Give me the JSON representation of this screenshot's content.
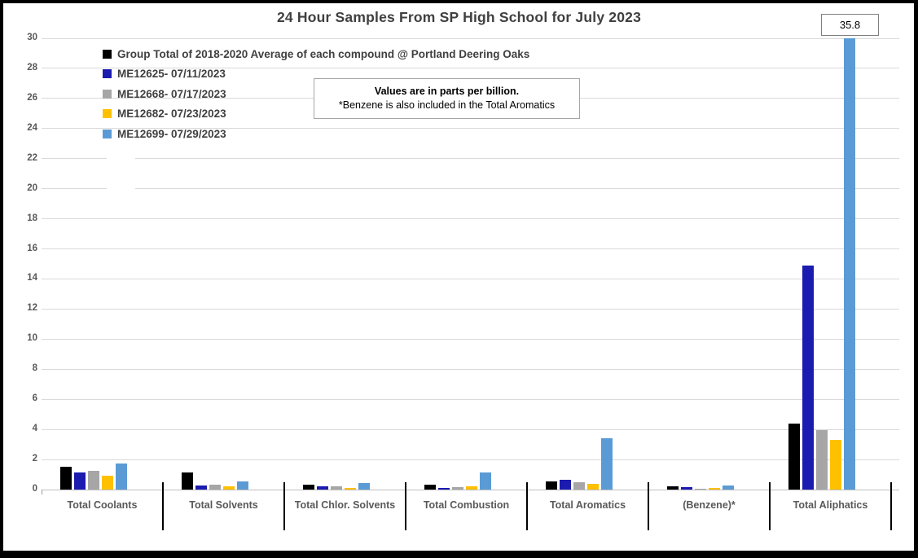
{
  "title": "24 Hour Samples From SP High School for July 2023",
  "note_box": {
    "line1": "Values are in parts per billion.",
    "line2": "*Benzene is also included in the Total Aromatics"
  },
  "colors": {
    "title_text": "#404040",
    "legend_text": "#404040",
    "tick_text": "#595959",
    "category_text": "#595959",
    "gridline": "#D9D9D9",
    "axis_line": "#BFBFBF",
    "separator": "#000000",
    "callout_border": "#7F7F7F",
    "note_border": "#A6A6A6"
  },
  "chart_data": {
    "type": "bar",
    "title": "24 Hour Samples From SP High School for July 2023",
    "units": "parts per billion",
    "categories": [
      "Total Coolants",
      "Total Solvents",
      "Total Chlor. Solvents",
      "Total Combustion",
      "Total Aromatics",
      "(Benzene)*",
      "Total Aliphatics"
    ],
    "series": [
      {
        "name": "Group Total of 2018-2020 Average of each compound @ Portland Deering Oaks",
        "color": "#000000",
        "values": [
          1.5,
          1.15,
          0.35,
          0.3,
          0.55,
          0.2,
          4.4
        ]
      },
      {
        "name": "ME12625- 07/11/2023",
        "color": "#1B1BB0",
        "values": [
          1.15,
          0.25,
          0.2,
          0.1,
          0.65,
          0.15,
          14.9
        ]
      },
      {
        "name": "ME12668- 07/17/2023",
        "color": "#A6A6A6",
        "values": [
          1.25,
          0.35,
          0.2,
          0.15,
          0.5,
          0.05,
          3.95
        ]
      },
      {
        "name": "ME12682- 07/23/2023",
        "color": "#FFC000",
        "values": [
          0.9,
          0.2,
          0.1,
          0.2,
          0.4,
          0.1,
          3.3
        ]
      },
      {
        "name": "ME12699- 07/29/2023",
        "color": "#5B9BD5",
        "values": [
          1.75,
          0.55,
          0.45,
          1.15,
          3.4,
          0.25,
          35.8
        ]
      }
    ],
    "ylim": [
      0,
      30
    ],
    "ytick_step": 2,
    "yticks": [
      0,
      2,
      4,
      6,
      8,
      10,
      12,
      14,
      16,
      18,
      20,
      22,
      24,
      26,
      28,
      30
    ],
    "grid": true,
    "legend_position": "top-left",
    "clipped_bar": {
      "series": "ME12699- 07/29/2023",
      "category": "Total Aliphatics",
      "value": 35.8,
      "label": "35.8",
      "note": "bar clipped at axis max 30, value shown in callout box"
    }
  }
}
